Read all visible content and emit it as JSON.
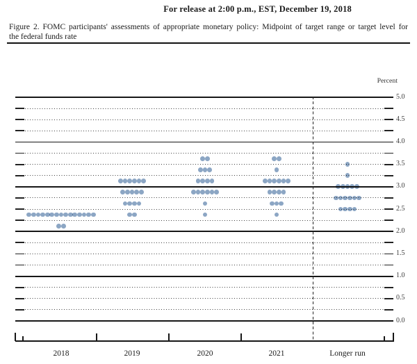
{
  "release_line": "For release at 2:00 p.m., EST, December 19, 2018",
  "caption": {
    "line1": "Figure 2. FOMC participants' assessments of appropriate monetary policy: Midpoint of target range or target level for",
    "line2": "the federal funds rate"
  },
  "chart_data": {
    "type": "scatter",
    "title": "FOMC participants' assessments of appropriate monetary policy: Midpoint of target range or target level for the federal funds rate",
    "ylabel": "Percent",
    "xlabel": "",
    "ylim": [
      0.0,
      5.0
    ],
    "gridline_interval": 0.25,
    "solid_gridlines_at": [
      0.0,
      1.0,
      2.0,
      3.0,
      4.0,
      5.0
    ],
    "grid": true,
    "legend": "none",
    "ytick_labels": [
      "5.0",
      "4.5",
      "4.0",
      "3.5",
      "3.0",
      "2.5",
      "2.0",
      "1.5",
      "1.0",
      "0.5",
      "0.0"
    ],
    "categories": [
      "2018",
      "2019",
      "2020",
      "2021",
      "Longer run"
    ],
    "separator_before_category": "Longer run",
    "dot_color": "#8ca6c4",
    "series": [
      {
        "category": "2018",
        "dots": [
          {
            "rate": 2.375,
            "count": 15
          },
          {
            "rate": 2.125,
            "count": 2
          }
        ]
      },
      {
        "category": "2019",
        "dots": [
          {
            "rate": 3.125,
            "count": 6
          },
          {
            "rate": 2.875,
            "count": 5
          },
          {
            "rate": 2.625,
            "count": 4
          },
          {
            "rate": 2.375,
            "count": 2
          }
        ]
      },
      {
        "category": "2020",
        "dots": [
          {
            "rate": 3.625,
            "count": 2
          },
          {
            "rate": 3.375,
            "count": 3
          },
          {
            "rate": 3.125,
            "count": 4
          },
          {
            "rate": 2.875,
            "count": 6
          },
          {
            "rate": 2.625,
            "count": 1
          },
          {
            "rate": 2.375,
            "count": 1
          }
        ]
      },
      {
        "category": "2021",
        "dots": [
          {
            "rate": 3.625,
            "count": 2
          },
          {
            "rate": 3.375,
            "count": 1
          },
          {
            "rate": 3.125,
            "count": 6
          },
          {
            "rate": 2.875,
            "count": 4
          },
          {
            "rate": 2.625,
            "count": 3
          },
          {
            "rate": 2.375,
            "count": 1
          }
        ]
      },
      {
        "category": "Longer run",
        "dots": [
          {
            "rate": 3.5,
            "count": 1
          },
          {
            "rate": 3.25,
            "count": 1
          },
          {
            "rate": 3.0,
            "count": 5
          },
          {
            "rate": 2.75,
            "count": 6
          },
          {
            "rate": 2.5,
            "count": 4
          }
        ]
      }
    ]
  }
}
